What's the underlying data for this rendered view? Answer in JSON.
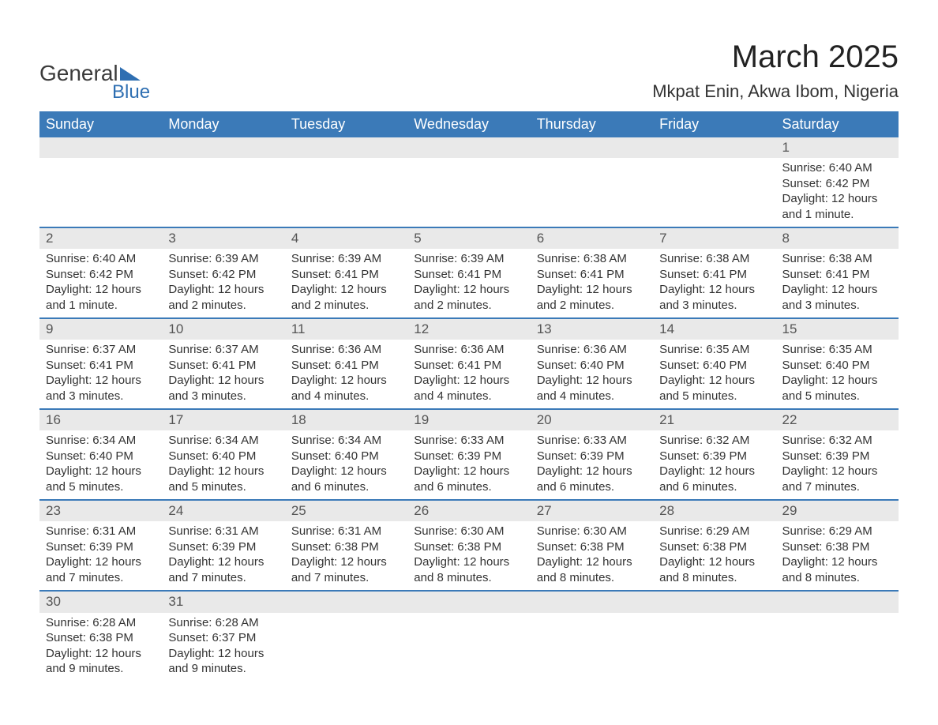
{
  "logo": {
    "text1": "General",
    "text2": "Blue",
    "brand_color": "#2f6fb2"
  },
  "header": {
    "title": "March 2025",
    "location": "Mkpat Enin, Akwa Ibom, Nigeria"
  },
  "colors": {
    "header_bg": "#3b7ab8",
    "header_text": "#ffffff",
    "daynum_bg": "#e9e9e9",
    "border": "#3b7ab8"
  },
  "daysOfWeek": [
    "Sunday",
    "Monday",
    "Tuesday",
    "Wednesday",
    "Thursday",
    "Friday",
    "Saturday"
  ],
  "weeks": [
    [
      {
        "n": "",
        "lines": [
          "",
          "",
          "",
          ""
        ]
      },
      {
        "n": "",
        "lines": [
          "",
          "",
          "",
          ""
        ]
      },
      {
        "n": "",
        "lines": [
          "",
          "",
          "",
          ""
        ]
      },
      {
        "n": "",
        "lines": [
          "",
          "",
          "",
          ""
        ]
      },
      {
        "n": "",
        "lines": [
          "",
          "",
          "",
          ""
        ]
      },
      {
        "n": "",
        "lines": [
          "",
          "",
          "",
          ""
        ]
      },
      {
        "n": "1",
        "lines": [
          "Sunrise: 6:40 AM",
          "Sunset: 6:42 PM",
          "Daylight: 12 hours",
          "and 1 minute."
        ]
      }
    ],
    [
      {
        "n": "2",
        "lines": [
          "Sunrise: 6:40 AM",
          "Sunset: 6:42 PM",
          "Daylight: 12 hours",
          "and 1 minute."
        ]
      },
      {
        "n": "3",
        "lines": [
          "Sunrise: 6:39 AM",
          "Sunset: 6:42 PM",
          "Daylight: 12 hours",
          "and 2 minutes."
        ]
      },
      {
        "n": "4",
        "lines": [
          "Sunrise: 6:39 AM",
          "Sunset: 6:41 PM",
          "Daylight: 12 hours",
          "and 2 minutes."
        ]
      },
      {
        "n": "5",
        "lines": [
          "Sunrise: 6:39 AM",
          "Sunset: 6:41 PM",
          "Daylight: 12 hours",
          "and 2 minutes."
        ]
      },
      {
        "n": "6",
        "lines": [
          "Sunrise: 6:38 AM",
          "Sunset: 6:41 PM",
          "Daylight: 12 hours",
          "and 2 minutes."
        ]
      },
      {
        "n": "7",
        "lines": [
          "Sunrise: 6:38 AM",
          "Sunset: 6:41 PM",
          "Daylight: 12 hours",
          "and 3 minutes."
        ]
      },
      {
        "n": "8",
        "lines": [
          "Sunrise: 6:38 AM",
          "Sunset: 6:41 PM",
          "Daylight: 12 hours",
          "and 3 minutes."
        ]
      }
    ],
    [
      {
        "n": "9",
        "lines": [
          "Sunrise: 6:37 AM",
          "Sunset: 6:41 PM",
          "Daylight: 12 hours",
          "and 3 minutes."
        ]
      },
      {
        "n": "10",
        "lines": [
          "Sunrise: 6:37 AM",
          "Sunset: 6:41 PM",
          "Daylight: 12 hours",
          "and 3 minutes."
        ]
      },
      {
        "n": "11",
        "lines": [
          "Sunrise: 6:36 AM",
          "Sunset: 6:41 PM",
          "Daylight: 12 hours",
          "and 4 minutes."
        ]
      },
      {
        "n": "12",
        "lines": [
          "Sunrise: 6:36 AM",
          "Sunset: 6:41 PM",
          "Daylight: 12 hours",
          "and 4 minutes."
        ]
      },
      {
        "n": "13",
        "lines": [
          "Sunrise: 6:36 AM",
          "Sunset: 6:40 PM",
          "Daylight: 12 hours",
          "and 4 minutes."
        ]
      },
      {
        "n": "14",
        "lines": [
          "Sunrise: 6:35 AM",
          "Sunset: 6:40 PM",
          "Daylight: 12 hours",
          "and 5 minutes."
        ]
      },
      {
        "n": "15",
        "lines": [
          "Sunrise: 6:35 AM",
          "Sunset: 6:40 PM",
          "Daylight: 12 hours",
          "and 5 minutes."
        ]
      }
    ],
    [
      {
        "n": "16",
        "lines": [
          "Sunrise: 6:34 AM",
          "Sunset: 6:40 PM",
          "Daylight: 12 hours",
          "and 5 minutes."
        ]
      },
      {
        "n": "17",
        "lines": [
          "Sunrise: 6:34 AM",
          "Sunset: 6:40 PM",
          "Daylight: 12 hours",
          "and 5 minutes."
        ]
      },
      {
        "n": "18",
        "lines": [
          "Sunrise: 6:34 AM",
          "Sunset: 6:40 PM",
          "Daylight: 12 hours",
          "and 6 minutes."
        ]
      },
      {
        "n": "19",
        "lines": [
          "Sunrise: 6:33 AM",
          "Sunset: 6:39 PM",
          "Daylight: 12 hours",
          "and 6 minutes."
        ]
      },
      {
        "n": "20",
        "lines": [
          "Sunrise: 6:33 AM",
          "Sunset: 6:39 PM",
          "Daylight: 12 hours",
          "and 6 minutes."
        ]
      },
      {
        "n": "21",
        "lines": [
          "Sunrise: 6:32 AM",
          "Sunset: 6:39 PM",
          "Daylight: 12 hours",
          "and 6 minutes."
        ]
      },
      {
        "n": "22",
        "lines": [
          "Sunrise: 6:32 AM",
          "Sunset: 6:39 PM",
          "Daylight: 12 hours",
          "and 7 minutes."
        ]
      }
    ],
    [
      {
        "n": "23",
        "lines": [
          "Sunrise: 6:31 AM",
          "Sunset: 6:39 PM",
          "Daylight: 12 hours",
          "and 7 minutes."
        ]
      },
      {
        "n": "24",
        "lines": [
          "Sunrise: 6:31 AM",
          "Sunset: 6:39 PM",
          "Daylight: 12 hours",
          "and 7 minutes."
        ]
      },
      {
        "n": "25",
        "lines": [
          "Sunrise: 6:31 AM",
          "Sunset: 6:38 PM",
          "Daylight: 12 hours",
          "and 7 minutes."
        ]
      },
      {
        "n": "26",
        "lines": [
          "Sunrise: 6:30 AM",
          "Sunset: 6:38 PM",
          "Daylight: 12 hours",
          "and 8 minutes."
        ]
      },
      {
        "n": "27",
        "lines": [
          "Sunrise: 6:30 AM",
          "Sunset: 6:38 PM",
          "Daylight: 12 hours",
          "and 8 minutes."
        ]
      },
      {
        "n": "28",
        "lines": [
          "Sunrise: 6:29 AM",
          "Sunset: 6:38 PM",
          "Daylight: 12 hours",
          "and 8 minutes."
        ]
      },
      {
        "n": "29",
        "lines": [
          "Sunrise: 6:29 AM",
          "Sunset: 6:38 PM",
          "Daylight: 12 hours",
          "and 8 minutes."
        ]
      }
    ],
    [
      {
        "n": "30",
        "lines": [
          "Sunrise: 6:28 AM",
          "Sunset: 6:38 PM",
          "Daylight: 12 hours",
          "and 9 minutes."
        ]
      },
      {
        "n": "31",
        "lines": [
          "Sunrise: 6:28 AM",
          "Sunset: 6:37 PM",
          "Daylight: 12 hours",
          "and 9 minutes."
        ]
      },
      {
        "n": "",
        "lines": [
          "",
          "",
          "",
          ""
        ]
      },
      {
        "n": "",
        "lines": [
          "",
          "",
          "",
          ""
        ]
      },
      {
        "n": "",
        "lines": [
          "",
          "",
          "",
          ""
        ]
      },
      {
        "n": "",
        "lines": [
          "",
          "",
          "",
          ""
        ]
      },
      {
        "n": "",
        "lines": [
          "",
          "",
          "",
          ""
        ]
      }
    ]
  ]
}
